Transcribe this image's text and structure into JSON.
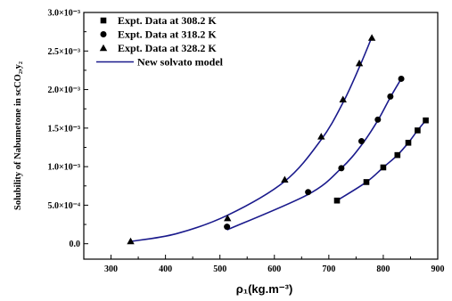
{
  "chart_data": {
    "type": "scatter",
    "xlabel": "ρ₁(kg.m⁻³)",
    "ylabel": "Solubility of Nabumetone in scCO₂,y₂",
    "xlim": [
      250,
      900
    ],
    "ylim": [
      -0.0002,
      0.003
    ],
    "x_ticks": [
      "300",
      "400",
      "500",
      "600",
      "700",
      "800",
      "900"
    ],
    "x_tick_values": [
      300,
      400,
      500,
      600,
      700,
      800,
      900
    ],
    "y_ticks": [
      "0.0",
      "5.0×10⁻⁴",
      "1.0×10⁻³",
      "1.5×10⁻³",
      "2.0×10⁻³",
      "2.5×10⁻³",
      "3.0×10⁻³"
    ],
    "y_tick_values": [
      0,
      0.0005,
      0.001,
      0.0015,
      0.002,
      0.0025,
      0.003
    ],
    "legend_position": "top-left",
    "series": [
      {
        "name": "Expt. Data at 308.2 K",
        "marker": "square",
        "x": [
          715,
          769,
          800,
          826,
          846,
          863,
          878
        ],
        "y": [
          0.00056,
          0.0008,
          0.00099,
          0.00115,
          0.00131,
          0.00147,
          0.0016
        ]
      },
      {
        "name": "Expt. Data at 318.2 K",
        "marker": "circle",
        "x": [
          513,
          662,
          723,
          760,
          790,
          813,
          833
        ],
        "y": [
          0.00022,
          0.00067,
          0.00098,
          0.00133,
          0.00161,
          0.00191,
          0.00214
        ]
      },
      {
        "name": "Expt. Data at 328.2 K",
        "marker": "triangle",
        "x": [
          336,
          514,
          619,
          686,
          726,
          756,
          779
        ],
        "y": [
          3e-05,
          0.00033,
          0.00083,
          0.00139,
          0.00187,
          0.00234,
          0.00267
        ]
      }
    ],
    "model_curves": [
      {
        "name": "New solvato model",
        "color": "#1a1a8c",
        "x": [
          715,
          769,
          800,
          826,
          846,
          863,
          878
        ],
        "y": [
          0.00056,
          0.0008,
          0.00099,
          0.00115,
          0.00131,
          0.00147,
          0.0016
        ]
      },
      {
        "name": "",
        "color": "#1a1a8c",
        "x": [
          513,
          662,
          723,
          760,
          790,
          813,
          833
        ],
        "y": [
          0.00018,
          0.00064,
          0.00098,
          0.00128,
          0.0016,
          0.0019,
          0.00214
        ]
      },
      {
        "name": "",
        "color": "#1a1a8c",
        "x": [
          336,
          420,
          514,
          619,
          686,
          726,
          756,
          779
        ],
        "y": [
          3e-05,
          0.00013,
          0.00037,
          0.00081,
          0.00135,
          0.00183,
          0.00229,
          0.00268
        ]
      }
    ]
  }
}
